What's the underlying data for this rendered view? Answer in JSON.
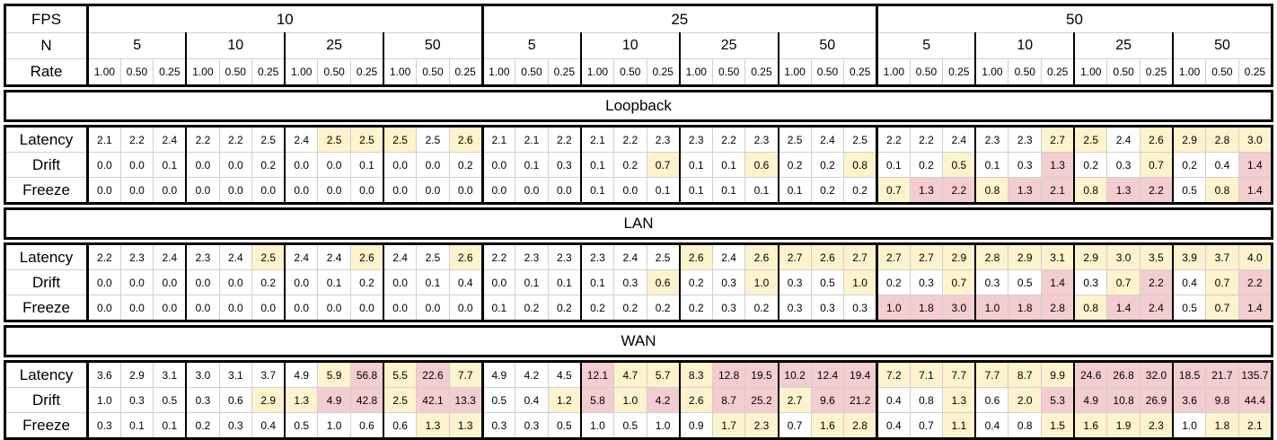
{
  "header": {
    "fps_label": "FPS",
    "n_label": "N",
    "rate_label": "Rate",
    "fps": [
      "10",
      "25",
      "50"
    ],
    "n": [
      "5",
      "10",
      "25",
      "50"
    ],
    "rates": [
      "1.00",
      "0.50",
      "0.25"
    ]
  },
  "colors": {
    "yellow": "#fdf3cd",
    "red": "#f3cdd0",
    "border": "#000000",
    "grid": "#d0d0d0"
  },
  "sections": [
    {
      "name": "Loopback",
      "rows": [
        {
          "label": "Latency",
          "values": [
            "2.1",
            "2.2",
            "2.4",
            "2.2",
            "2.2",
            "2.5",
            "2.4",
            "2.5",
            "2.5",
            "2.5",
            "2.5",
            "2.6",
            "2.1",
            "2.1",
            "2.2",
            "2.1",
            "2.2",
            "2.3",
            "2.3",
            "2.2",
            "2.3",
            "2.5",
            "2.4",
            "2.5",
            "2.2",
            "2.2",
            "2.4",
            "2.3",
            "2.3",
            "2.7",
            "2.5",
            "2.4",
            "2.6",
            "2.9",
            "2.8",
            "3.0"
          ],
          "colors": [
            "",
            "",
            "",
            "",
            "",
            "",
            "",
            "y",
            "y",
            "y",
            "",
            "y",
            "",
            "",
            "",
            "",
            "",
            "",
            "",
            "",
            "",
            "",
            "",
            "",
            "",
            "",
            "",
            "",
            "",
            "y",
            "y",
            "",
            "y",
            "y",
            "y",
            "y"
          ]
        },
        {
          "label": "Drift",
          "values": [
            "0.0",
            "0.0",
            "0.1",
            "0.0",
            "0.0",
            "0.2",
            "0.0",
            "0.0",
            "0.1",
            "0.0",
            "0.0",
            "0.2",
            "0.0",
            "0.1",
            "0.3",
            "0.1",
            "0.2",
            "0.7",
            "0.1",
            "0.1",
            "0.6",
            "0.2",
            "0.2",
            "0.8",
            "0.1",
            "0.2",
            "0.5",
            "0.1",
            "0.3",
            "1.3",
            "0.2",
            "0.3",
            "0.7",
            "0.2",
            "0.4",
            "1.4"
          ],
          "colors": [
            "",
            "",
            "",
            "",
            "",
            "",
            "",
            "",
            "",
            "",
            "",
            "",
            "",
            "",
            "",
            "",
            "",
            "y",
            "",
            "",
            "y",
            "",
            "",
            "y",
            "",
            "",
            "y",
            "",
            "",
            "r",
            "",
            "",
            "y",
            "",
            "",
            "r"
          ]
        },
        {
          "label": "Freeze",
          "values": [
            "0.0",
            "0.0",
            "0.0",
            "0.0",
            "0.0",
            "0.0",
            "0.0",
            "0.0",
            "0.0",
            "0.0",
            "0.0",
            "0.0",
            "0.0",
            "0.0",
            "0.0",
            "0.1",
            "0.0",
            "0.1",
            "0.1",
            "0.1",
            "0.1",
            "0.1",
            "0.2",
            "0.2",
            "0.7",
            "1.3",
            "2.2",
            "0.8",
            "1.3",
            "2.1",
            "0.8",
            "1.3",
            "2.2",
            "0.5",
            "0.8",
            "1.4"
          ],
          "colors": [
            "",
            "",
            "",
            "",
            "",
            "",
            "",
            "",
            "",
            "",
            "",
            "",
            "",
            "",
            "",
            "",
            "",
            "",
            "",
            "",
            "",
            "",
            "",
            "",
            "y",
            "r",
            "r",
            "y",
            "r",
            "r",
            "y",
            "r",
            "r",
            "",
            "y",
            "r"
          ]
        }
      ]
    },
    {
      "name": "LAN",
      "rows": [
        {
          "label": "Latency",
          "values": [
            "2.2",
            "2.3",
            "2.4",
            "2.3",
            "2.4",
            "2.5",
            "2.4",
            "2.4",
            "2.6",
            "2.4",
            "2.5",
            "2.6",
            "2.2",
            "2.3",
            "2.3",
            "2.3",
            "2.4",
            "2.5",
            "2.6",
            "2.4",
            "2.6",
            "2.7",
            "2.6",
            "2.7",
            "2.7",
            "2.7",
            "2.9",
            "2.8",
            "2.9",
            "3.1",
            "2.9",
            "3.0",
            "3.5",
            "3.9",
            "3.7",
            "4.0"
          ],
          "colors": [
            "",
            "",
            "",
            "",
            "",
            "y",
            "",
            "",
            "y",
            "",
            "",
            "y",
            "",
            "",
            "",
            "",
            "",
            "",
            "y",
            "",
            "y",
            "y",
            "y",
            "y",
            "y",
            "y",
            "y",
            "y",
            "y",
            "y",
            "y",
            "y",
            "y",
            "y",
            "y",
            "y"
          ]
        },
        {
          "label": "Drift",
          "values": [
            "0.0",
            "0.0",
            "0.0",
            "0.0",
            "0.0",
            "0.2",
            "0.0",
            "0.1",
            "0.2",
            "0.0",
            "0.1",
            "0.4",
            "0.0",
            "0.1",
            "0.1",
            "0.1",
            "0.3",
            "0.6",
            "0.2",
            "0.3",
            "1.0",
            "0.3",
            "0.5",
            "1.0",
            "0.2",
            "0.3",
            "0.7",
            "0.3",
            "0.5",
            "1.4",
            "0.3",
            "0.7",
            "2.2",
            "0.4",
            "0.7",
            "2.2"
          ],
          "colors": [
            "",
            "",
            "",
            "",
            "",
            "",
            "",
            "",
            "",
            "",
            "",
            "",
            "",
            "",
            "",
            "",
            "",
            "y",
            "",
            "",
            "y",
            "",
            "",
            "y",
            "",
            "",
            "y",
            "",
            "",
            "r",
            "",
            "y",
            "r",
            "",
            "y",
            "r"
          ]
        },
        {
          "label": "Freeze",
          "values": [
            "0.0",
            "0.0",
            "0.0",
            "0.0",
            "0.0",
            "0.0",
            "0.0",
            "0.0",
            "0.0",
            "0.0",
            "0.0",
            "0.0",
            "0.1",
            "0.2",
            "0.2",
            "0.2",
            "0.2",
            "0.2",
            "0.2",
            "0.3",
            "0.2",
            "0.3",
            "0.3",
            "0.3",
            "1.0",
            "1.8",
            "3.0",
            "1.0",
            "1.8",
            "2.8",
            "0.8",
            "1.4",
            "2.4",
            "0.5",
            "0.7",
            "1.4"
          ],
          "colors": [
            "",
            "",
            "",
            "",
            "",
            "",
            "",
            "",
            "",
            "",
            "",
            "",
            "",
            "",
            "",
            "",
            "",
            "",
            "",
            "",
            "",
            "",
            "",
            "",
            "r",
            "r",
            "r",
            "r",
            "r",
            "r",
            "y",
            "r",
            "r",
            "",
            "y",
            "r"
          ]
        }
      ]
    },
    {
      "name": "WAN",
      "rows": [
        {
          "label": "Latency",
          "values": [
            "3.6",
            "2.9",
            "3.1",
            "3.0",
            "3.1",
            "3.7",
            "4.9",
            "5.9",
            "56.8",
            "5.5",
            "22.6",
            "7.7",
            "4.9",
            "4.2",
            "4.5",
            "12.1",
            "4.7",
            "5.7",
            "8.3",
            "12.8",
            "19.5",
            "10.2",
            "12.4",
            "19.4",
            "7.2",
            "7.1",
            "7.7",
            "7.7",
            "8.7",
            "9.9",
            "24.6",
            "26.8",
            "32.0",
            "18.5",
            "21.7",
            "135.7"
          ],
          "colors": [
            "",
            "",
            "",
            "",
            "",
            "",
            "",
            "y",
            "r",
            "y",
            "r",
            "y",
            "",
            "",
            "",
            "r",
            "y",
            "y",
            "y",
            "r",
            "r",
            "r",
            "r",
            "r",
            "y",
            "y",
            "y",
            "y",
            "y",
            "y",
            "r",
            "r",
            "r",
            "r",
            "r",
            "r"
          ]
        },
        {
          "label": "Drift",
          "values": [
            "1.0",
            "0.3",
            "0.5",
            "0.3",
            "0.6",
            "2.9",
            "1.3",
            "4.9",
            "42.8",
            "2.5",
            "42.1",
            "13.3",
            "0.5",
            "0.4",
            "1.2",
            "5.8",
            "1.0",
            "4.2",
            "2.6",
            "8.7",
            "25.2",
            "2.7",
            "9.6",
            "21.2",
            "0.4",
            "0.8",
            "1.3",
            "0.6",
            "2.0",
            "5.3",
            "4.9",
            "10.8",
            "26.9",
            "3.6",
            "9.8",
            "44.4"
          ],
          "colors": [
            "",
            "",
            "",
            "",
            "",
            "y",
            "y",
            "r",
            "r",
            "y",
            "r",
            "r",
            "",
            "",
            "y",
            "r",
            "y",
            "r",
            "y",
            "r",
            "r",
            "y",
            "r",
            "r",
            "",
            "",
            "y",
            "",
            "y",
            "r",
            "r",
            "r",
            "r",
            "r",
            "r",
            "r"
          ]
        },
        {
          "label": "Freeze",
          "values": [
            "0.3",
            "0.1",
            "0.1",
            "0.2",
            "0.3",
            "0.4",
            "0.5",
            "1.0",
            "0.6",
            "0.6",
            "1.3",
            "1.3",
            "0.3",
            "0.3",
            "0.5",
            "1.0",
            "0.5",
            "1.0",
            "0.9",
            "1.7",
            "2.3",
            "0.7",
            "1.6",
            "2.8",
            "0.4",
            "0.7",
            "1.1",
            "0.4",
            "0.8",
            "1.5",
            "1.6",
            "1.9",
            "2.3",
            "1.0",
            "1.8",
            "2.1"
          ],
          "colors": [
            "",
            "",
            "",
            "",
            "",
            "",
            "",
            "",
            "",
            "",
            "y",
            "y",
            "",
            "",
            "",
            "",
            "",
            "",
            "",
            "y",
            "y",
            "",
            "y",
            "y",
            "",
            "",
            "y",
            "",
            "",
            "y",
            "y",
            "y",
            "y",
            "",
            "y",
            "y"
          ]
        }
      ]
    }
  ]
}
